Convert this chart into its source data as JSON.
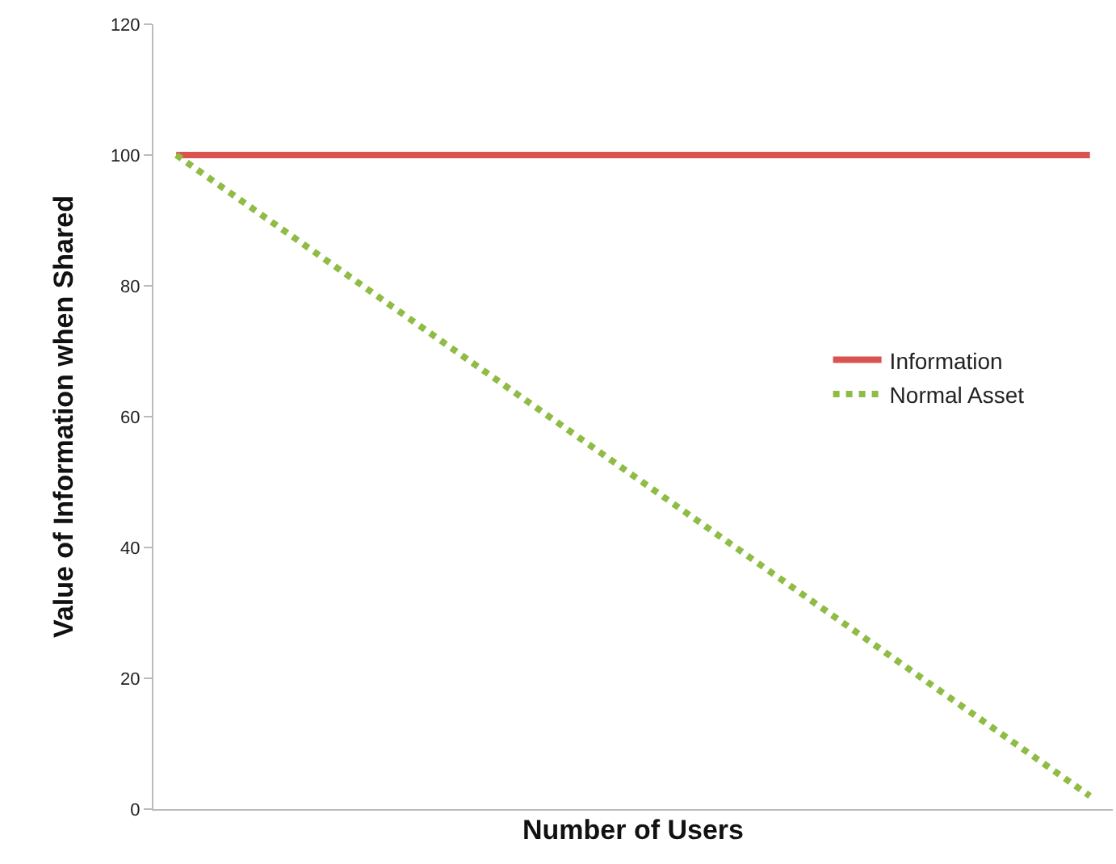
{
  "chart_data": {
    "type": "line",
    "xlabel": "Number of Users",
    "ylabel": "Value of Information when Shared",
    "categories": [
      null,
      null,
      null,
      null,
      null,
      null,
      null,
      null,
      null,
      null,
      null,
      null,
      null,
      null,
      null,
      null,
      null,
      null,
      null,
      null,
      null
    ],
    "series": [
      {
        "name": "Information",
        "color": "#d9534f",
        "values": [
          100,
          100,
          100,
          100,
          100,
          100,
          100,
          100,
          100,
          100,
          100,
          100,
          100,
          100,
          100,
          100,
          100,
          100,
          100,
          100,
          100
        ],
        "line_style": "solid"
      },
      {
        "name": "Normal Asset",
        "color": "#8fbc45",
        "values": [
          100,
          95.1,
          90.2,
          85.3,
          80.4,
          75.5,
          70.6,
          65.7,
          60.8,
          55.9,
          51,
          46.1,
          41.2,
          36.3,
          31.4,
          26.5,
          21.6,
          16.7,
          11.8,
          6.9,
          2
        ],
        "line_style": "dotted"
      }
    ],
    "ylim": [
      0,
      120
    ],
    "yticks": [
      0,
      20,
      40,
      60,
      80,
      100,
      120
    ],
    "grid": false,
    "legend": "right",
    "tick_labels": "y",
    "marker": "none"
  }
}
